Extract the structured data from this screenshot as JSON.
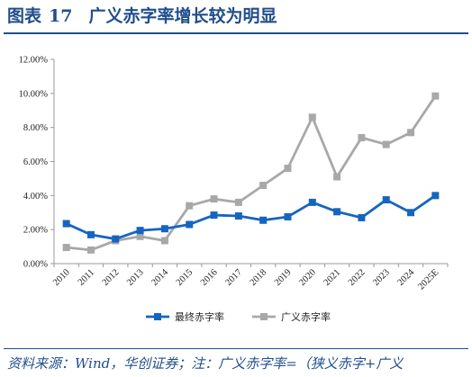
{
  "figure": {
    "label": "图表",
    "number": "17",
    "title": "广义赤字率增长较为明显",
    "source": "资料来源：Wind，华创证券；注：广义赤字率=（狭义赤字+广义"
  },
  "colors": {
    "title": "#1f4e8c",
    "series_1": "#1565c0",
    "series_2": "#a8a8a8",
    "axis": "#999999"
  },
  "chart_data": {
    "type": "line",
    "categories": [
      "2010",
      "2011",
      "2012",
      "2013",
      "2014",
      "2015",
      "2016",
      "2017",
      "2018",
      "2019",
      "2020",
      "2021",
      "2022",
      "2023",
      "2024",
      "2025E"
    ],
    "y_ticks": [
      "0.00%",
      "2.00%",
      "4.00%",
      "6.00%",
      "8.00%",
      "10.00%",
      "12.00%"
    ],
    "ylim": [
      0,
      12
    ],
    "grid": false,
    "legend_position": "bottom-center",
    "series": [
      {
        "name": "最终赤字率",
        "color": "#1565c0",
        "marker": "square",
        "values": [
          2.35,
          1.7,
          1.45,
          1.95,
          2.05,
          2.3,
          2.85,
          2.8,
          2.55,
          2.75,
          3.6,
          3.05,
          2.7,
          3.75,
          3.0,
          4.0
        ]
      },
      {
        "name": "广义赤字率",
        "color": "#a8a8a8",
        "marker": "square",
        "values": [
          0.95,
          0.8,
          1.35,
          1.6,
          1.35,
          3.4,
          3.8,
          3.6,
          4.6,
          5.6,
          8.6,
          5.1,
          7.4,
          7.0,
          7.7,
          9.85
        ]
      }
    ]
  }
}
